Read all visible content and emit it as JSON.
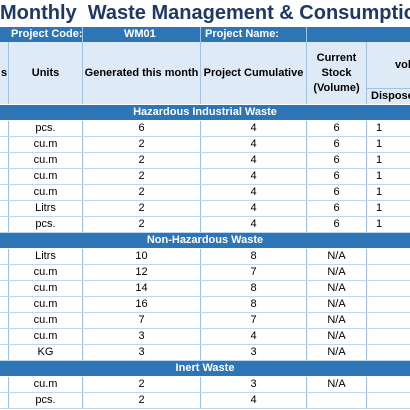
{
  "title": "Monthly  Waste Management & Consumption Log",
  "info": {
    "project_code_label": "Project Code:",
    "project_code_value": "WM01",
    "project_name_label": "Project Name:"
  },
  "headers": {
    "col0": "s",
    "units": "Units",
    "generated": "Generated this month",
    "cumulative": "Project Cumulative",
    "stock": "Current\nStock\n(Volume)",
    "vol": "vol",
    "disposed": "Disposed"
  },
  "sections": [
    {
      "title": "Hazardous Industrial Waste",
      "rows": [
        {
          "units": "pcs.",
          "generated": "6",
          "cumulative": "4",
          "stock": "6",
          "disposed": "1"
        },
        {
          "units": "cu.m",
          "generated": "2",
          "cumulative": "4",
          "stock": "6",
          "disposed": "1"
        },
        {
          "units": "cu.m",
          "generated": "2",
          "cumulative": "4",
          "stock": "6",
          "disposed": "1"
        },
        {
          "units": "cu.m",
          "generated": "2",
          "cumulative": "4",
          "stock": "6",
          "disposed": "1"
        },
        {
          "units": "cu.m",
          "generated": "2",
          "cumulative": "4",
          "stock": "6",
          "disposed": "1"
        },
        {
          "units": "Litrs",
          "generated": "2",
          "cumulative": "4",
          "stock": "6",
          "disposed": "1"
        },
        {
          "units": "pcs.",
          "generated": "2",
          "cumulative": "4",
          "stock": "6",
          "disposed": "1"
        }
      ]
    },
    {
      "title": "Non-Hazardous Waste",
      "rows": [
        {
          "units": "Litrs",
          "generated": "10",
          "cumulative": "8",
          "stock": "N/A",
          "disposed": ""
        },
        {
          "units": "cu.m",
          "generated": "12",
          "cumulative": "7",
          "stock": "N/A",
          "disposed": ""
        },
        {
          "units": "cu.m",
          "generated": "14",
          "cumulative": "8",
          "stock": "N/A",
          "disposed": ""
        },
        {
          "units": "cu.m",
          "generated": "16",
          "cumulative": "8",
          "stock": "N/A",
          "disposed": ""
        },
        {
          "units": "cu.m",
          "generated": "7",
          "cumulative": "7",
          "stock": "N/A",
          "disposed": ""
        },
        {
          "units": "cu.m",
          "generated": "3",
          "cumulative": "4",
          "stock": "N/A",
          "disposed": ""
        },
        {
          "units": "KG",
          "generated": "3",
          "cumulative": "3",
          "stock": "N/A",
          "disposed": ""
        }
      ]
    },
    {
      "title": "Inert Waste",
      "rows": [
        {
          "units": "cu.m",
          "generated": "2",
          "cumulative": "3",
          "stock": "N/A",
          "disposed": ""
        },
        {
          "units": "pcs.",
          "generated": "2",
          "cumulative": "4",
          "stock": "",
          "disposed": ""
        }
      ]
    }
  ]
}
